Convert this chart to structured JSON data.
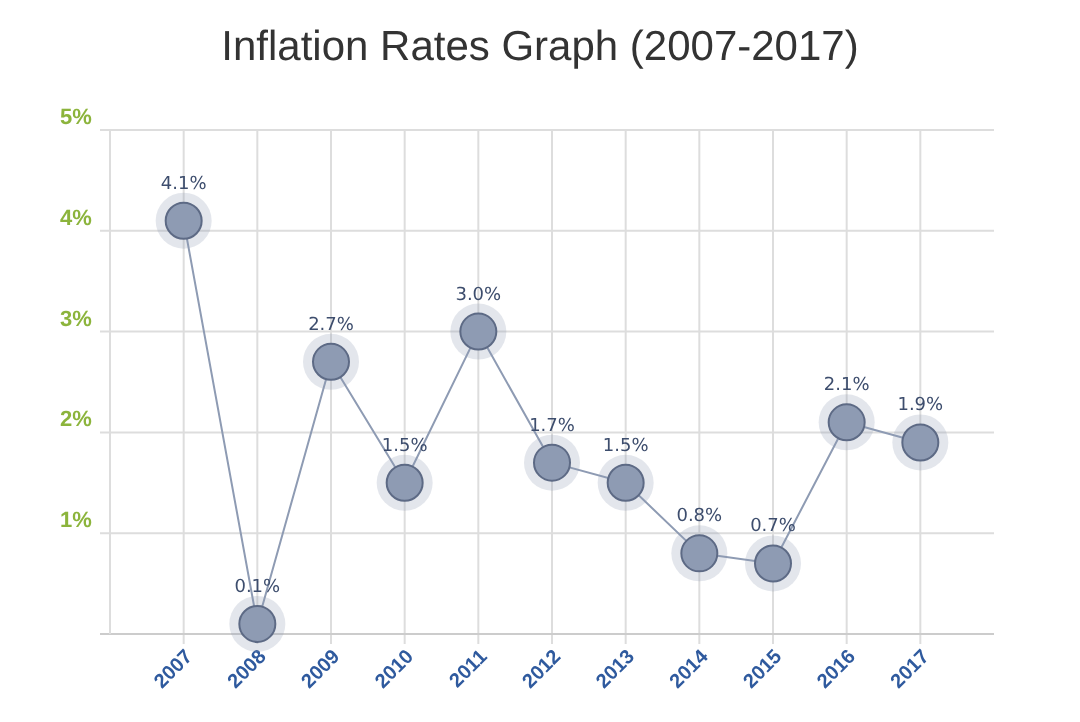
{
  "chart_data": {
    "type": "line",
    "title": "Inflation Rates Graph (2007-2017)",
    "categories": [
      "2007",
      "2008",
      "2009",
      "2010",
      "2011",
      "2012",
      "2013",
      "2014",
      "2015",
      "2016",
      "2017"
    ],
    "series": [
      {
        "color": "#8e9bb3",
        "values": [
          4.1,
          0.1,
          2.7,
          1.5,
          3.0,
          1.7,
          1.5,
          0.8,
          0.7,
          2.1,
          1.9
        ],
        "value_labels": [
          "4.1%",
          "0.1%",
          "2.7%",
          "1.5%",
          "3.0%",
          "1.7%",
          "1.5%",
          "0.8%",
          "0.7%",
          "2.1%",
          "1.9%"
        ]
      }
    ],
    "ylim": [
      0,
      5
    ],
    "yticks": [
      {
        "value": 1,
        "label": "1%"
      },
      {
        "value": 2,
        "label": "2%"
      },
      {
        "value": 3,
        "label": "3%"
      },
      {
        "value": 4,
        "label": "4%"
      },
      {
        "value": 5,
        "label": "5%"
      }
    ],
    "grid": true,
    "marker": "circle"
  }
}
